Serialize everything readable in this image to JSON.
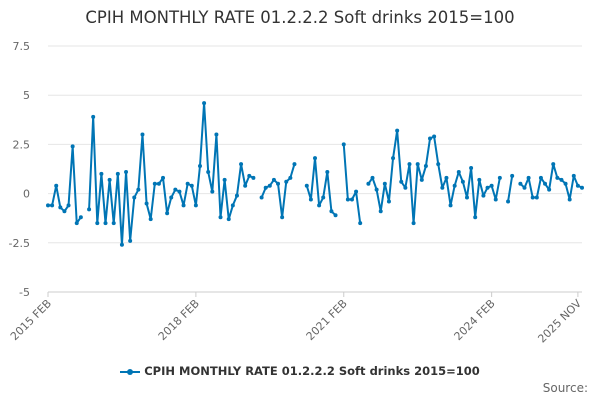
{
  "title": "CPIH MONTHLY RATE 01.2.2.2 Soft drinks 2015=100",
  "source_label": "Source:",
  "colors": {
    "series": "#0075b5",
    "grid": "#e6e6e6",
    "axis_text": "#666666"
  },
  "chart_data": {
    "type": "line",
    "title": "CPIH MONTHLY RATE 01.2.2.2 Soft drinks 2015=100",
    "xlabel": "",
    "ylabel": "",
    "ylim": [
      -5,
      7.5
    ],
    "yticks": [
      7.5,
      5,
      2.5,
      0,
      -2.5,
      -5
    ],
    "ytick_labels": [
      "7.5",
      "5",
      "2.5",
      "0",
      "-2.5",
      "-5"
    ],
    "xticks": [
      {
        "label": "2015 FEB",
        "index": 0
      },
      {
        "label": "2018 FEB",
        "index": 36
      },
      {
        "label": "2021 FEB",
        "index": 72
      },
      {
        "label": "2024 FEB",
        "index": 108
      },
      {
        "label": "2025 NOV",
        "index": 129
      }
    ],
    "series": [
      {
        "name": "CPIH MONTHLY RATE 01.2.2.2 Soft drinks 2015=100",
        "start": "2015 FEB",
        "values": [
          -0.6,
          -0.6,
          0.4,
          -0.7,
          -0.9,
          -0.6,
          2.4,
          -1.5,
          -1.2,
          null,
          -0.8,
          3.9,
          -1.5,
          1.0,
          -1.5,
          0.7,
          -1.5,
          1.0,
          -2.6,
          1.1,
          -2.4,
          -0.2,
          0.2,
          3.0,
          -0.5,
          -1.3,
          0.5,
          0.5,
          0.8,
          -1.0,
          -0.2,
          0.2,
          0.1,
          -0.6,
          0.5,
          0.4,
          -0.6,
          1.4,
          4.6,
          1.1,
          0.1,
          3.0,
          -1.2,
          0.7,
          -1.3,
          -0.6,
          -0.1,
          1.5,
          0.4,
          0.9,
          0.8,
          null,
          -0.2,
          0.3,
          0.4,
          0.7,
          0.5,
          -1.2,
          0.6,
          0.8,
          1.5,
          null,
          null,
          0.4,
          -0.3,
          1.8,
          -0.6,
          -0.2,
          1.1,
          -0.9,
          -1.1,
          null,
          2.5,
          -0.3,
          -0.3,
          0.1,
          -1.5,
          null,
          0.5,
          0.8,
          0.2,
          -0.9,
          0.5,
          -0.4,
          1.8,
          3.2,
          0.6,
          0.3,
          1.5,
          -1.5,
          1.5,
          0.7,
          1.4,
          2.8,
          2.9,
          1.5,
          0.3,
          0.8,
          -0.6,
          0.4,
          1.1,
          0.6,
          -0.2,
          1.3,
          -1.2,
          0.7,
          -0.1,
          0.3,
          0.4,
          -0.3,
          0.8,
          null,
          -0.4,
          0.9,
          null,
          0.5,
          0.3,
          0.8,
          -0.2,
          -0.2,
          0.8,
          0.5,
          0.2,
          1.5,
          0.8,
          0.7,
          0.5,
          -0.3,
          0.9,
          0.4,
          0.3
        ]
      }
    ]
  }
}
